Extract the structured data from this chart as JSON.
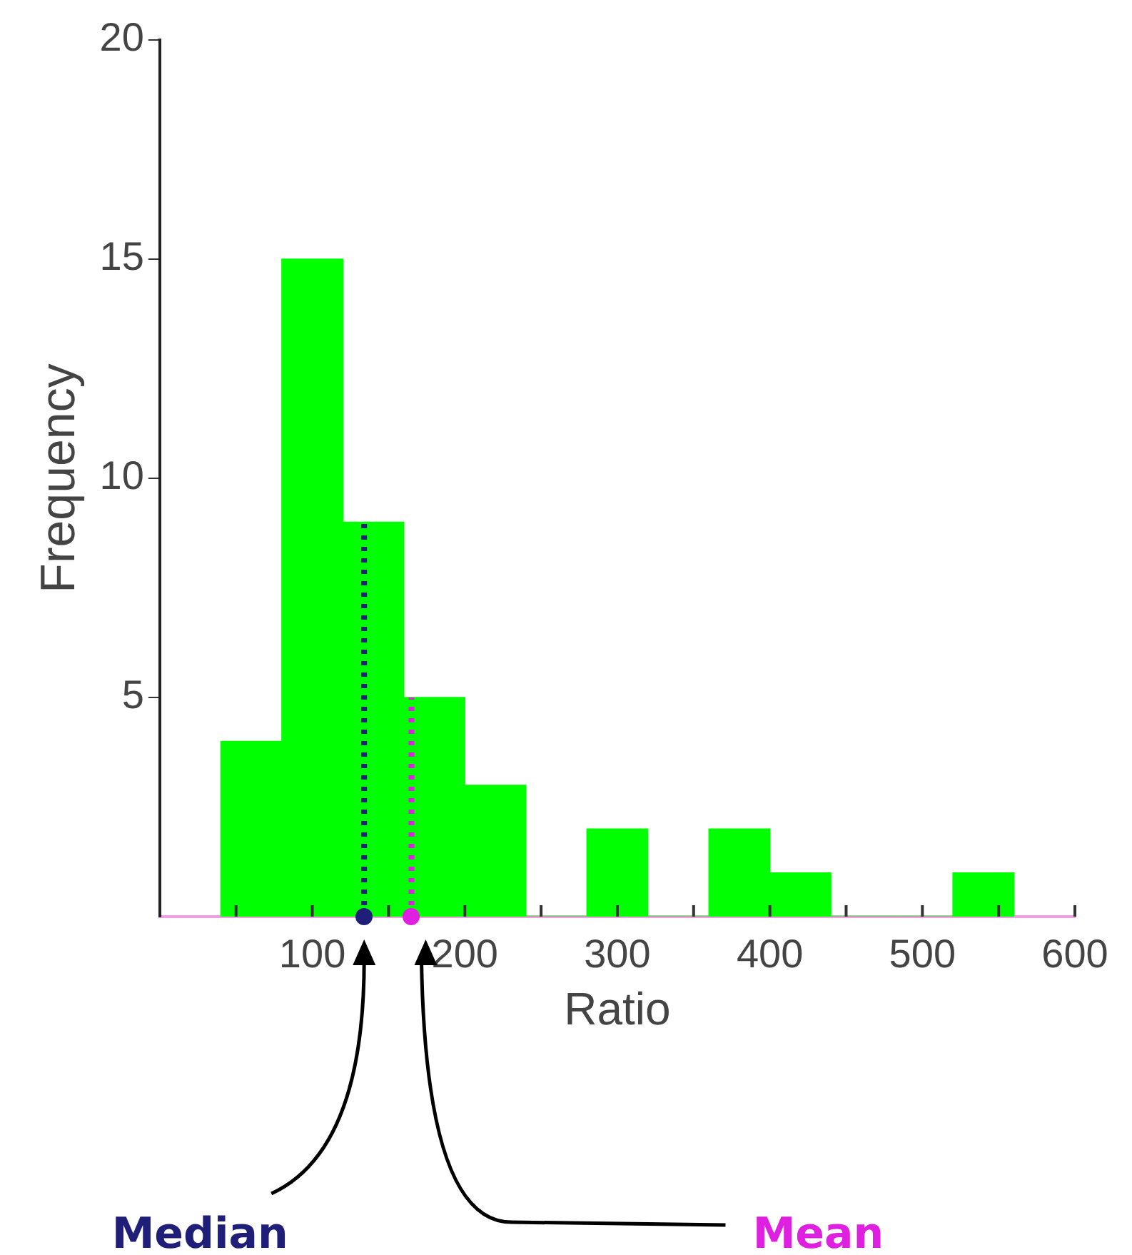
{
  "chart_data": {
    "type": "histogram",
    "xlabel": "Ratio",
    "ylabel": "Frequency",
    "bins": [
      40,
      80,
      120,
      160,
      200,
      240,
      280,
      320,
      360,
      400,
      440,
      480,
      520,
      560
    ],
    "values": [
      4,
      15,
      9,
      5,
      3,
      0,
      2,
      0,
      2,
      1,
      0,
      0,
      1
    ],
    "color": "#00ff00",
    "xlim": [
      0,
      600
    ],
    "xticks": [
      {
        "value": 50,
        "label": null
      },
      100,
      {
        "value": 150,
        "label": null
      },
      200,
      {
        "value": 250,
        "label": null
      },
      300,
      {
        "value": 350,
        "label": null
      },
      400,
      {
        "value": 450,
        "label": null
      },
      500,
      {
        "value": 550,
        "label": null
      },
      600
    ],
    "ylim": [
      0,
      20
    ],
    "yticks": [
      5,
      10,
      15,
      20
    ],
    "grid": false,
    "ref_lines": [
      {
        "axis": "x",
        "value": 134,
        "label": "Median",
        "color": "#1f1f7a",
        "line_style": "dotted"
      },
      {
        "axis": "x",
        "value": 165,
        "label": "Mean",
        "color": "#e020e0",
        "line_style": "dotted"
      }
    ]
  }
}
